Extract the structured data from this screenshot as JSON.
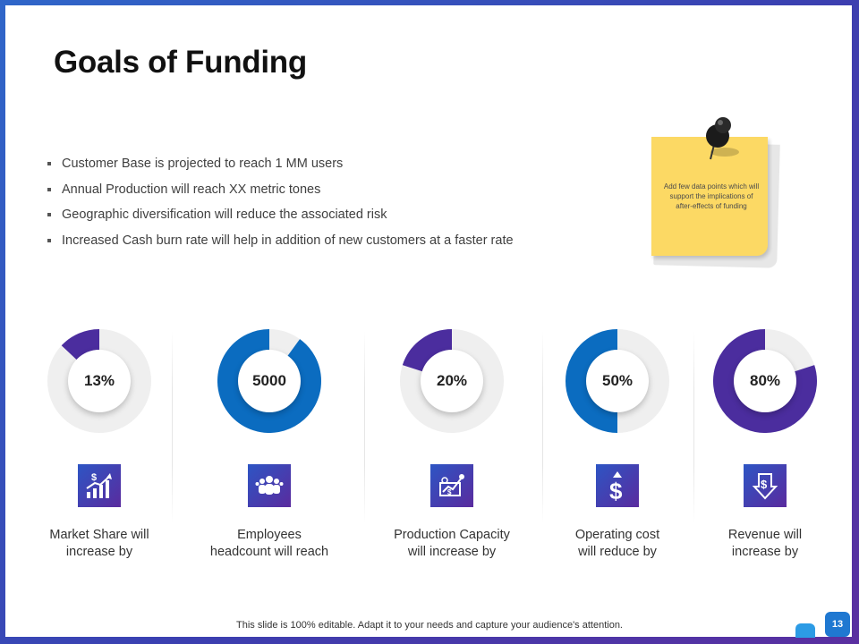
{
  "title": "Goals of Funding",
  "bullets": [
    "Customer Base is projected to reach 1 MM users",
    "Annual Production will reach XX metric tones",
    "Geographic diversification will reduce the associated risk",
    "Increased Cash burn rate will help in addition of new customers at a faster rate"
  ],
  "note": {
    "text": "Add few data points which will support the implications of after-effects of funding"
  },
  "metrics": [
    {
      "value_text": "13%",
      "fraction": 0.13,
      "color": "#4b2d9e",
      "icon": "growth-chart-dollar-icon",
      "label_line1": "Market Share will",
      "label_line2": "increase by"
    },
    {
      "value_text": "5000",
      "fraction": 0.9,
      "color": "#0b6cc0",
      "icon": "people-group-icon",
      "label_line1": "Employees",
      "label_line2": "headcount will reach"
    },
    {
      "value_text": "20%",
      "fraction": 0.2,
      "color": "#4b2d9e",
      "icon": "production-chart-icon",
      "label_line1": "Production Capacity",
      "label_line2": "will increase by"
    },
    {
      "value_text": "50%",
      "fraction": 0.5,
      "color": "#0b6cc0",
      "icon": "dollar-up-arrow-icon",
      "label_line1": "Operating cost",
      "label_line2": "will reduce by"
    },
    {
      "value_text": "80%",
      "fraction": 0.8,
      "color": "#4b2d9e",
      "icon": "dollar-down-arrow-icon",
      "label_line1": "Revenue will",
      "label_line2": "increase by"
    }
  ],
  "colors": {
    "accent_purple": "#4b2d9e",
    "accent_blue": "#0b6cc0",
    "icon_gradient_start": "#2d55c4",
    "icon_gradient_end": "#5a2b9e"
  },
  "footer": "This slide is 100% editable. Adapt it to your needs and capture your audience's attention.",
  "page_number": "13"
}
